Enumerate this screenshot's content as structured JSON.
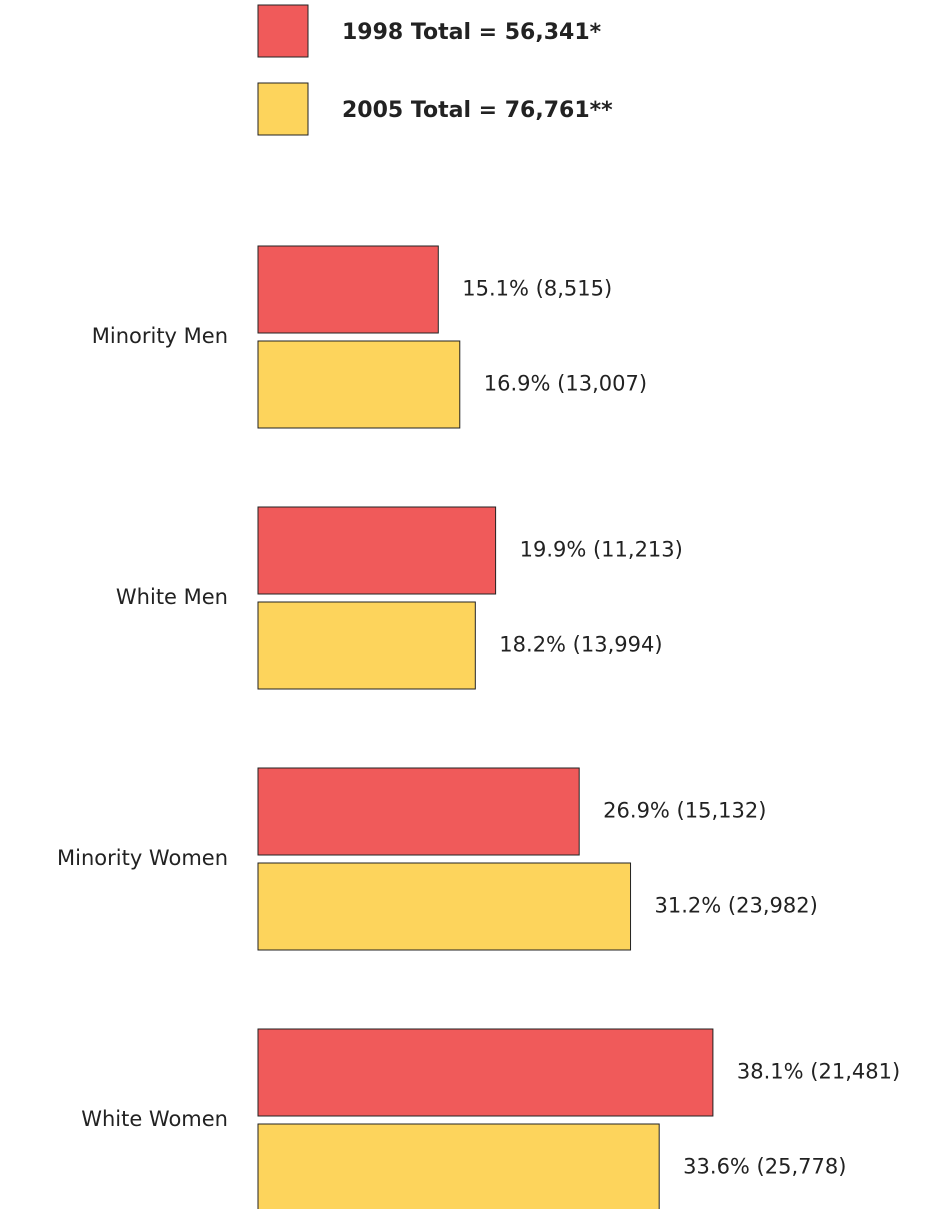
{
  "chart_data": {
    "type": "bar",
    "orientation": "horizontal",
    "categories": [
      "Minority Men",
      "White Men",
      "Minority Women",
      "White Women"
    ],
    "series": [
      {
        "name": "1998 Total = 56,341*",
        "color": "#f05a5a",
        "values": [
          15.1,
          19.9,
          26.9,
          38.1
        ],
        "value_labels": [
          "15.1% (8,515)",
          "19.9% (11,213)",
          "26.9% (15,132)",
          "38.1% (21,481)"
        ]
      },
      {
        "name": "2005 Total = 76,761**",
        "color": "#fdd45c",
        "values": [
          16.9,
          18.2,
          31.2,
          33.6
        ],
        "value_labels": [
          "16.9% (13,007)",
          "18.2% (13,994)",
          "31.2% (23,982)",
          "33.6% (25,778)"
        ]
      }
    ]
  }
}
